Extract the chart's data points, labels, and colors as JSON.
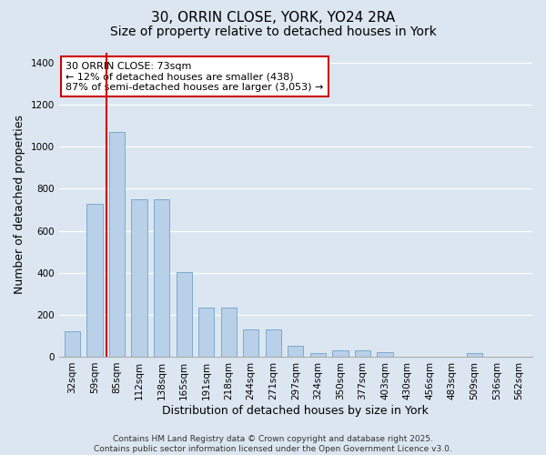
{
  "title_line1": "30, ORRIN CLOSE, YORK, YO24 2RA",
  "title_line2": "Size of property relative to detached houses in York",
  "xlabel": "Distribution of detached houses by size in York",
  "ylabel": "Number of detached properties",
  "categories": [
    "32sqm",
    "59sqm",
    "85sqm",
    "112sqm",
    "138sqm",
    "165sqm",
    "191sqm",
    "218sqm",
    "244sqm",
    "271sqm",
    "297sqm",
    "324sqm",
    "350sqm",
    "377sqm",
    "403sqm",
    "430sqm",
    "456sqm",
    "483sqm",
    "509sqm",
    "536sqm",
    "562sqm"
  ],
  "values": [
    120,
    730,
    1070,
    750,
    750,
    405,
    235,
    235,
    130,
    130,
    50,
    15,
    30,
    30,
    20,
    0,
    0,
    0,
    15,
    0,
    0
  ],
  "bar_color": "#b8d0e8",
  "bar_edgecolor": "#7aaad0",
  "vline_x": 1.55,
  "vline_color": "#cc0000",
  "annotation_text": "30 ORRIN CLOSE: 73sqm\n← 12% of detached houses are smaller (438)\n87% of semi-detached houses are larger (3,053) →",
  "annotation_box_facecolor": "#ffffff",
  "annotation_box_edgecolor": "#cc0000",
  "ylim": [
    0,
    1450
  ],
  "yticks": [
    0,
    200,
    400,
    600,
    800,
    1000,
    1200,
    1400
  ],
  "background_color": "#dce6f0",
  "grid_color": "#ffffff",
  "footer_text": "Contains HM Land Registry data © Crown copyright and database right 2025.\nContains public sector information licensed under the Open Government Licence v3.0.",
  "title_fontsize": 11,
  "subtitle_fontsize": 10,
  "axis_label_fontsize": 9,
  "tick_fontsize": 7.5,
  "annotation_fontsize": 8,
  "footer_fontsize": 6.5
}
